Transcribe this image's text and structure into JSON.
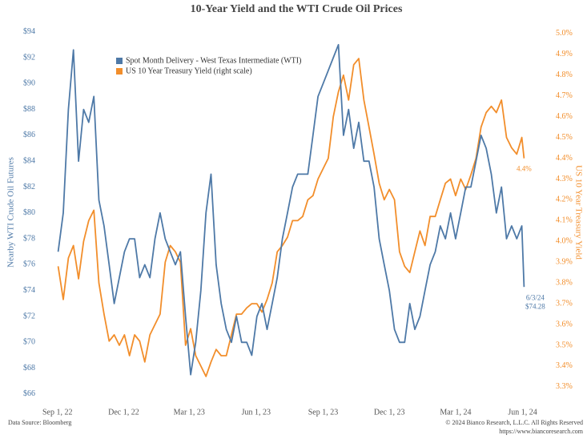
{
  "chart_data": {
    "type": "line",
    "title": "10-Year Yield and the WTI Crude Oil Prices",
    "y_label": "Nearby WTI Crude Oil Futures",
    "y2_label": "US 10 Year Treasury Yield",
    "source": "Data Source: Bloomberg",
    "copyright": "© 2024 Bianco Research, L.L.C. All Rights Reserved",
    "url": "https://www.biancoresearch.com",
    "annotations": [
      "6/3/24",
      "$74.28",
      "4.4%"
    ],
    "legend": "top-left",
    "grid": false,
    "x": [
      "2022-09-02",
      "2022-09-09",
      "2022-09-16",
      "2022-09-23",
      "2022-09-30",
      "2022-10-07",
      "2022-10-14",
      "2022-10-21",
      "2022-10-28",
      "2022-11-04",
      "2022-11-11",
      "2022-11-18",
      "2022-11-25",
      "2022-12-02",
      "2022-12-09",
      "2022-12-16",
      "2022-12-23",
      "2022-12-30",
      "2023-01-06",
      "2023-01-13",
      "2023-01-20",
      "2023-01-27",
      "2023-02-03",
      "2023-02-10",
      "2023-02-17",
      "2023-02-24",
      "2023-03-03",
      "2023-03-10",
      "2023-03-17",
      "2023-03-24",
      "2023-03-31",
      "2023-04-07",
      "2023-04-14",
      "2023-04-21",
      "2023-04-28",
      "2023-05-05",
      "2023-05-12",
      "2023-05-19",
      "2023-05-26",
      "2023-06-02",
      "2023-06-09",
      "2023-06-16",
      "2023-06-23",
      "2023-06-30",
      "2023-07-07",
      "2023-07-14",
      "2023-07-21",
      "2023-07-28",
      "2023-08-04",
      "2023-08-11",
      "2023-08-18",
      "2023-08-25",
      "2023-09-01",
      "2023-09-08",
      "2023-09-15",
      "2023-09-22",
      "2023-09-29",
      "2023-10-06",
      "2023-10-13",
      "2023-10-20",
      "2023-10-27",
      "2023-11-03",
      "2023-11-10",
      "2023-11-17",
      "2023-11-24",
      "2023-12-01",
      "2023-12-08",
      "2023-12-15",
      "2023-12-22",
      "2023-12-29",
      "2024-01-05",
      "2024-01-12",
      "2024-01-19",
      "2024-01-26",
      "2024-02-02",
      "2024-02-09",
      "2024-02-16",
      "2024-02-23",
      "2024-03-01",
      "2024-03-08",
      "2024-03-15",
      "2024-03-22",
      "2024-03-29",
      "2024-04-05",
      "2024-04-12",
      "2024-04-19",
      "2024-04-26",
      "2024-05-03",
      "2024-05-10",
      "2024-05-17",
      "2024-05-24",
      "2024-05-31",
      "2024-06-03"
    ],
    "xlim": [
      "2022-08-29",
      "2024-06-07"
    ],
    "xticks": [
      {
        "value": "2022-09-01",
        "label": "Sep 1, 22"
      },
      {
        "value": "2022-12-01",
        "label": "Dec 1, 22"
      },
      {
        "value": "2023-03-01",
        "label": "Mar 1, 23"
      },
      {
        "value": "2023-06-01",
        "label": "Jun 1, 23"
      },
      {
        "value": "2023-09-01",
        "label": "Sep 1, 23"
      },
      {
        "value": "2023-12-01",
        "label": "Dec 1, 23"
      },
      {
        "value": "2024-03-01",
        "label": "Mar 1, 24"
      },
      {
        "value": "2024-06-01",
        "label": "Jun 1, 24"
      }
    ],
    "ylim": [
      65.5,
      94.6
    ],
    "yticks": [
      {
        "value": 66,
        "label": "$66"
      },
      {
        "value": 68,
        "label": "$68"
      },
      {
        "value": 70,
        "label": "$70"
      },
      {
        "value": 72,
        "label": "$72"
      },
      {
        "value": 74,
        "label": "$74"
      },
      {
        "value": 76,
        "label": "$76"
      },
      {
        "value": 78,
        "label": "$78"
      },
      {
        "value": 80,
        "label": "$80"
      },
      {
        "value": 82,
        "label": "$82"
      },
      {
        "value": 84,
        "label": "$84"
      },
      {
        "value": 86,
        "label": "$86"
      },
      {
        "value": 88,
        "label": "$88"
      },
      {
        "value": 90,
        "label": "$90"
      },
      {
        "value": 92,
        "label": "$92"
      },
      {
        "value": 94,
        "label": "$94"
      }
    ],
    "y2lim": [
      3.234,
      5.046
    ],
    "y2ticks": [
      {
        "value": 3.3,
        "label": "3.3%"
      },
      {
        "value": 3.4,
        "label": "3.4%"
      },
      {
        "value": 3.5,
        "label": "3.5%"
      },
      {
        "value": 3.6,
        "label": "3.6%"
      },
      {
        "value": 3.7,
        "label": "3.7%"
      },
      {
        "value": 3.8,
        "label": "3.8%"
      },
      {
        "value": 3.9,
        "label": "3.9%"
      },
      {
        "value": 4.0,
        "label": "4.0%"
      },
      {
        "value": 4.1,
        "label": "4.1%"
      },
      {
        "value": 4.2,
        "label": "4.2%"
      },
      {
        "value": 4.3,
        "label": "4.3%"
      },
      {
        "value": 4.4,
        "label": "4.4%"
      },
      {
        "value": 4.5,
        "label": "4.5%"
      },
      {
        "value": 4.6,
        "label": "4.6%"
      },
      {
        "value": 4.7,
        "label": "4.7%"
      },
      {
        "value": 4.8,
        "label": "4.8%"
      },
      {
        "value": 4.9,
        "label": "4.9%"
      },
      {
        "value": 5.0,
        "label": "5.0%"
      }
    ],
    "series": [
      {
        "name": "Spot Month Delivery - West Texas Intermediate (WTI)",
        "color": "#4e79a7",
        "values": [
          77,
          80,
          88,
          92.6,
          84,
          88,
          87,
          89,
          81,
          79,
          76,
          73,
          75,
          77,
          78,
          78,
          75,
          76,
          75,
          78,
          80,
          78,
          77,
          76,
          77,
          72,
          67.5,
          70,
          74,
          80,
          83,
          76,
          73,
          71,
          70,
          72,
          70,
          70,
          69,
          72,
          73,
          71,
          73,
          75,
          78,
          80,
          82,
          83,
          83,
          83,
          86,
          89,
          90,
          91,
          92,
          93,
          86,
          88,
          85,
          87,
          84,
          84,
          82,
          78,
          76,
          74,
          71,
          70,
          70,
          73,
          71,
          72,
          74,
          76,
          77,
          79,
          78,
          80,
          78,
          80,
          82,
          82,
          84,
          86,
          85,
          83,
          80,
          82,
          78,
          79,
          78,
          79,
          74.28
        ]
      },
      {
        "name": "US 10 Year Treasury Yield (right scale)",
        "color": "#f28e2b",
        "axis": "y2",
        "values": [
          3.88,
          3.72,
          3.92,
          3.98,
          3.82,
          4.0,
          4.1,
          4.15,
          3.8,
          3.65,
          3.52,
          3.55,
          3.5,
          3.55,
          3.45,
          3.55,
          3.52,
          3.42,
          3.55,
          3.6,
          3.65,
          3.9,
          3.98,
          3.95,
          3.9,
          3.5,
          3.58,
          3.45,
          3.4,
          3.35,
          3.42,
          3.48,
          3.45,
          3.45,
          3.55,
          3.65,
          3.65,
          3.68,
          3.7,
          3.7,
          3.66,
          3.72,
          3.8,
          3.95,
          3.98,
          4.02,
          4.1,
          4.1,
          4.12,
          4.2,
          4.22,
          4.3,
          4.35,
          4.4,
          4.6,
          4.72,
          4.8,
          4.68,
          4.85,
          4.88,
          4.68,
          4.55,
          4.42,
          4.28,
          4.2,
          4.25,
          4.2,
          3.95,
          3.88,
          3.85,
          3.95,
          4.05,
          3.98,
          4.12,
          4.12,
          4.2,
          4.28,
          4.3,
          4.22,
          4.3,
          4.25,
          4.32,
          4.4,
          4.55,
          4.62,
          4.65,
          4.62,
          4.68,
          4.5,
          4.45,
          4.42,
          4.5,
          4.4
        ]
      }
    ]
  }
}
